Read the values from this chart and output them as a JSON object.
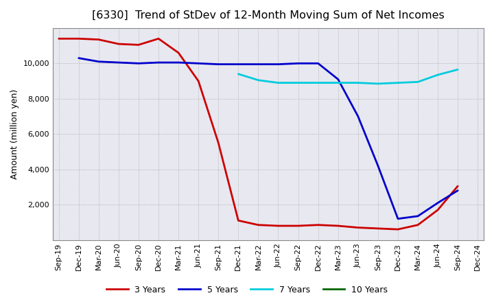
{
  "title": "[6330]  Trend of StDev of 12-Month Moving Sum of Net Incomes",
  "ylabel": "Amount (million yen)",
  "background_color": "#ffffff",
  "plot_bg_color": "#e8e8f0",
  "grid_color": "#999999",
  "title_fontsize": 11.5,
  "label_fontsize": 9,
  "tick_fontsize": 8,
  "ylim": [
    0,
    12000
  ],
  "yticks": [
    2000,
    4000,
    6000,
    8000,
    10000
  ],
  "series_3yr": {
    "color": "#cc0000",
    "x": [
      0,
      1,
      2,
      3,
      4,
      5,
      6,
      7,
      8,
      9,
      10,
      11,
      12,
      13,
      14,
      15,
      16,
      17,
      18,
      19,
      20
    ],
    "y": [
      11400,
      11400,
      11350,
      11100,
      11050,
      11400,
      10600,
      9000,
      5500,
      1100,
      850,
      800,
      800,
      850,
      800,
      700,
      650,
      600,
      850,
      1700,
      3050
    ]
  },
  "series_5yr": {
    "color": "#0000cc",
    "x": [
      0,
      1,
      2,
      3,
      4,
      5,
      6,
      7,
      8,
      9,
      10,
      11,
      12,
      13,
      14,
      15,
      16,
      17,
      18,
      19,
      20
    ],
    "y": [
      null,
      10300,
      10100,
      10050,
      10000,
      10050,
      10050,
      10000,
      9950,
      9950,
      9950,
      9950,
      10000,
      10000,
      9100,
      7000,
      4200,
      1200,
      1350,
      2100,
      2800
    ]
  },
  "series_7yr": {
    "color": "#00ccdd",
    "x": [
      9,
      10,
      11,
      12,
      13,
      14,
      15,
      16,
      17,
      18,
      19,
      20
    ],
    "y": [
      9400,
      9050,
      8900,
      8900,
      8900,
      8900,
      8900,
      8850,
      8900,
      8950,
      9350,
      9650
    ]
  },
  "series_10yr": {
    "color": "#006600",
    "x": [],
    "y": []
  },
  "xtick_labels": [
    "Sep-19",
    "Dec-19",
    "Mar-20",
    "Jun-20",
    "Sep-20",
    "Dec-20",
    "Mar-21",
    "Jun-21",
    "Sep-21",
    "Dec-21",
    "Mar-22",
    "Jun-22",
    "Sep-22",
    "Dec-22",
    "Mar-23",
    "Jun-23",
    "Sep-23",
    "Dec-23",
    "Mar-24",
    "Jun-24",
    "Sep-24",
    "Dec-24"
  ]
}
